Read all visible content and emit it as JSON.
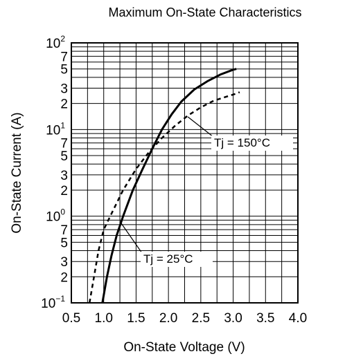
{
  "chart_data": {
    "type": "line",
    "title": "Maximum On-State Characteristics",
    "xlabel": "On-State Voltage  (V)",
    "ylabel": "On-State Current  (A)",
    "xlim": [
      0.5,
      4.0
    ],
    "ylim": [
      0.1,
      100
    ],
    "yscale": "log",
    "grid": true,
    "x_ticks": [
      "0.5",
      "1.0",
      "1.5",
      "2.0",
      "2.5",
      "3.0",
      "3.5",
      "4.0"
    ],
    "y_ticks": [
      {
        "value": 100,
        "base": "10",
        "exp": "2"
      },
      {
        "value": 70,
        "label": "7"
      },
      {
        "value": 50,
        "label": "5"
      },
      {
        "value": 30,
        "label": "3"
      },
      {
        "value": 20,
        "label": "2"
      },
      {
        "value": 10,
        "base": "10",
        "exp": "1"
      },
      {
        "value": 7,
        "label": "7"
      },
      {
        "value": 5,
        "label": "5"
      },
      {
        "value": 3,
        "label": "3"
      },
      {
        "value": 2,
        "label": "2"
      },
      {
        "value": 1,
        "base": "10",
        "exp": "0"
      },
      {
        "value": 0.7,
        "label": "7"
      },
      {
        "value": 0.5,
        "label": "5"
      },
      {
        "value": 0.3,
        "label": "3"
      },
      {
        "value": 0.2,
        "label": "2"
      },
      {
        "value": 0.1,
        "base": "10",
        "exp": "−1"
      }
    ],
    "series": [
      {
        "name": "Tj = 25°C",
        "style": "solid",
        "points": [
          [
            0.98,
            0.1
          ],
          [
            1.05,
            0.2
          ],
          [
            1.12,
            0.35
          ],
          [
            1.2,
            0.6
          ],
          [
            1.3,
            1.0
          ],
          [
            1.45,
            2.0
          ],
          [
            1.6,
            3.5
          ],
          [
            1.75,
            6
          ],
          [
            1.9,
            10
          ],
          [
            2.05,
            15
          ],
          [
            2.2,
            21
          ],
          [
            2.4,
            29
          ],
          [
            2.6,
            36
          ],
          [
            2.8,
            43
          ],
          [
            3.0,
            49
          ],
          [
            3.05,
            50
          ]
        ]
      },
      {
        "name": "Tj = 150°C",
        "style": "dashed",
        "points": [
          [
            0.78,
            0.1
          ],
          [
            0.85,
            0.2
          ],
          [
            0.92,
            0.4
          ],
          [
            1.0,
            0.7
          ],
          [
            1.1,
            1.0
          ],
          [
            1.3,
            2.0
          ],
          [
            1.5,
            3.5
          ],
          [
            1.7,
            5.5
          ],
          [
            1.9,
            8
          ],
          [
            2.1,
            11
          ],
          [
            2.3,
            14.5
          ],
          [
            2.5,
            18
          ],
          [
            2.7,
            21.5
          ],
          [
            2.9,
            24
          ],
          [
            3.05,
            26
          ],
          [
            3.1,
            27
          ]
        ]
      }
    ],
    "annotations": [
      {
        "text": "Tj = 150°C",
        "series": 1
      },
      {
        "text": "Tj = 25°C",
        "series": 0
      }
    ]
  }
}
